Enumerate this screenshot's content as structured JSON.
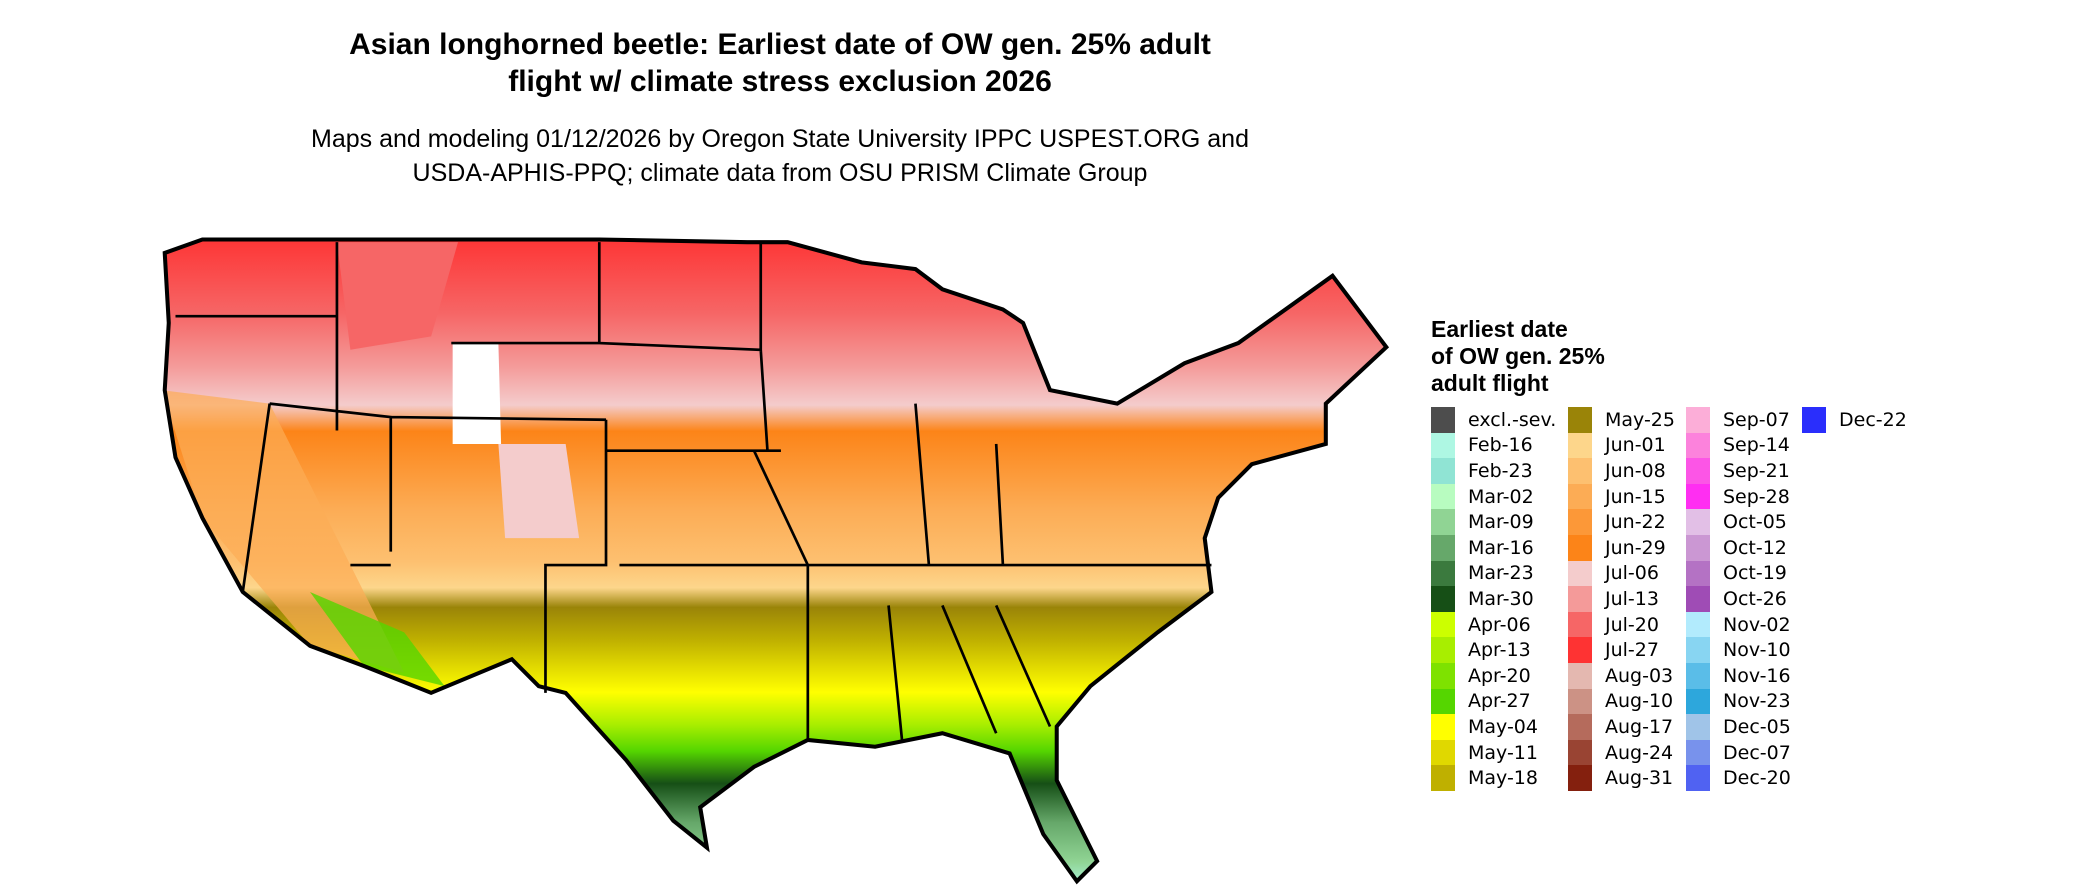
{
  "title_lines": [
    "Asian longhorned beetle: Earliest date of OW gen. 25% adult",
    "flight w/ climate stress exclusion 2026"
  ],
  "subtitle_lines": [
    "Maps and modeling 01/12/2026 by Oregon State University IPPC USPEST.ORG and",
    "USDA-APHIS-PPQ; climate data from OSU PRISM Climate Group"
  ],
  "legend": {
    "title_lines": [
      "Earliest date",
      "of OW gen. 25%",
      "adult flight"
    ],
    "columns": [
      [
        {
          "label": "excl.-sev.",
          "color": "#4d4d4d"
        },
        {
          "label": "Feb-16",
          "color": "#aef7e3"
        },
        {
          "label": "Feb-23",
          "color": "#90e4d4"
        },
        {
          "label": "Mar-02",
          "color": "#b8fcc0"
        },
        {
          "label": "Mar-09",
          "color": "#90d494"
        },
        {
          "label": "Mar-16",
          "color": "#66a86a"
        },
        {
          "label": "Mar-23",
          "color": "#3b7a3e"
        },
        {
          "label": "Mar-30",
          "color": "#164f16"
        },
        {
          "label": "Apr-06",
          "color": "#ccff00"
        },
        {
          "label": "Apr-13",
          "color": "#a8ee00"
        },
        {
          "label": "Apr-20",
          "color": "#7ee200"
        },
        {
          "label": "Apr-27",
          "color": "#55d600"
        },
        {
          "label": "May-04",
          "color": "#ffff00"
        },
        {
          "label": "May-11",
          "color": "#e0d800"
        },
        {
          "label": "May-18",
          "color": "#bfb000"
        }
      ],
      [
        {
          "label": "May-25",
          "color": "#9a8408"
        },
        {
          "label": "Jun-01",
          "color": "#fdd68b"
        },
        {
          "label": "Jun-08",
          "color": "#fdc070"
        },
        {
          "label": "Jun-15",
          "color": "#fcac55"
        },
        {
          "label": "Jun-22",
          "color": "#fc9838"
        },
        {
          "label": "Jun-29",
          "color": "#fc8418"
        },
        {
          "label": "Jul-06",
          "color": "#f4cccc"
        },
        {
          "label": "Jul-13",
          "color": "#f49a99"
        },
        {
          "label": "Jul-20",
          "color": "#f66666"
        },
        {
          "label": "Jul-27",
          "color": "#fe3333"
        },
        {
          "label": "Aug-03",
          "color": "#e4b8b0"
        },
        {
          "label": "Aug-10",
          "color": "#cc9285"
        },
        {
          "label": "Aug-17",
          "color": "#b56b5c"
        },
        {
          "label": "Aug-24",
          "color": "#994433"
        },
        {
          "label": "Aug-31",
          "color": "#84200e"
        }
      ],
      [
        {
          "label": "Sep-07",
          "color": "#fcaed8"
        },
        {
          "label": "Sep-14",
          "color": "#fc82dc"
        },
        {
          "label": "Sep-21",
          "color": "#fc55e6"
        },
        {
          "label": "Sep-28",
          "color": "#ff2ef2"
        },
        {
          "label": "Oct-05",
          "color": "#e2bfe6"
        },
        {
          "label": "Oct-12",
          "color": "#cb97d3"
        },
        {
          "label": "Oct-19",
          "color": "#b472c4"
        },
        {
          "label": "Oct-26",
          "color": "#9f4cb5"
        },
        {
          "label": "Nov-02",
          "color": "#b2ebfd"
        },
        {
          "label": "Nov-10",
          "color": "#88d5f2"
        },
        {
          "label": "Nov-16",
          "color": "#5abde8"
        },
        {
          "label": "Nov-23",
          "color": "#2da7dc"
        },
        {
          "label": "Dec-05",
          "color": "#a0c4e8"
        },
        {
          "label": "Dec-07",
          "color": "#7892ec"
        },
        {
          "label": "Dec-20",
          "color": "#5062f2"
        }
      ],
      [
        {
          "label": "Dec-22",
          "color": "#2a2efc"
        }
      ]
    ]
  }
}
